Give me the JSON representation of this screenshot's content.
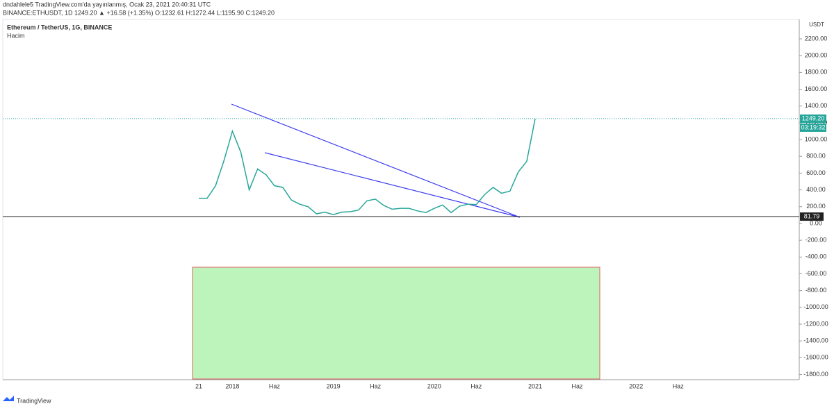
{
  "header": {
    "published": "dndahlele5 TradingView.com'da yayınlanmış, Ocak 23, 2021 20:40:31 UTC",
    "symbol_line": "BINANCE:ETHUSDT, 1D  1249.20  ▲ +16.58 (+1.35%)  O:1232.61  H:1272.44  L:1195.90  C:1249.20"
  },
  "chart_data": {
    "type": "line",
    "title": "Ethereum / TetherUS, 1G, BINANCE",
    "subtitle": "Hacim",
    "y_unit": "USDT",
    "categories": [
      "21",
      null,
      null,
      null,
      "2018",
      null,
      null,
      null,
      null,
      "Haz",
      null,
      null,
      null,
      null,
      null,
      null,
      "2019",
      null,
      null,
      null,
      null,
      "Haz",
      null,
      null,
      null,
      null,
      null,
      null,
      "2020",
      null,
      null,
      null,
      null,
      "Haz",
      null,
      null,
      null,
      null,
      null,
      null,
      "2021",
      null,
      null,
      null,
      null,
      "Haz",
      null,
      null,
      null,
      null,
      null,
      null,
      "2022",
      null,
      null,
      null,
      null,
      "Haz"
    ],
    "series": [
      {
        "name": "ETHUSDT",
        "color": "#26a69a",
        "values": [
          300,
          300,
          450,
          750,
          1100,
          850,
          400,
          650,
          580,
          450,
          430,
          280,
          230,
          200,
          115,
          135,
          105,
          135,
          140,
          160,
          270,
          290,
          215,
          170,
          180,
          180,
          150,
          130,
          180,
          220,
          130,
          205,
          230,
          225,
          345,
          430,
          360,
          385,
          615,
          740,
          1249.2,
          null,
          null,
          null,
          null,
          null,
          null,
          null,
          null,
          null,
          null,
          null,
          null,
          null,
          null,
          null,
          null,
          null
        ]
      }
    ],
    "ylim": [
      -1870,
      2415
    ],
    "yticks": [
      {
        "value": 2200,
        "label": "2200.00"
      },
      {
        "value": 2000,
        "label": "2000.00"
      },
      {
        "value": 1800,
        "label": "1800.00"
      },
      {
        "value": 1600,
        "label": "1600.00"
      },
      {
        "value": 1400,
        "label": "1400.00"
      },
      {
        "value": 1200,
        "label": "1200.00"
      },
      {
        "value": 1000,
        "label": "1000.00"
      },
      {
        "value": 800,
        "label": "800.00"
      },
      {
        "value": 600,
        "label": "600.00"
      },
      {
        "value": 400,
        "label": "400.00"
      },
      {
        "value": 200,
        "label": "200.00"
      },
      {
        "value": 0,
        "label": "0.00"
      },
      {
        "value": -200,
        "label": "-200.00"
      },
      {
        "value": -400,
        "label": "-400.00"
      },
      {
        "value": -600,
        "label": "-600.00"
      },
      {
        "value": -800,
        "label": "-800.00"
      },
      {
        "value": -1000,
        "label": "-1000.00"
      },
      {
        "value": -1200,
        "label": "-1200.00"
      },
      {
        "value": -1400,
        "label": "-1400.00"
      },
      {
        "value": -1600,
        "label": "-1600.00"
      },
      {
        "value": -1800,
        "label": "-1800.00"
      }
    ],
    "last_price": {
      "value": 1249.2,
      "label": "1249.20"
    },
    "countdown": "03:19:32",
    "hline": 81.79
  },
  "footer": {
    "brand": "TradingView"
  }
}
